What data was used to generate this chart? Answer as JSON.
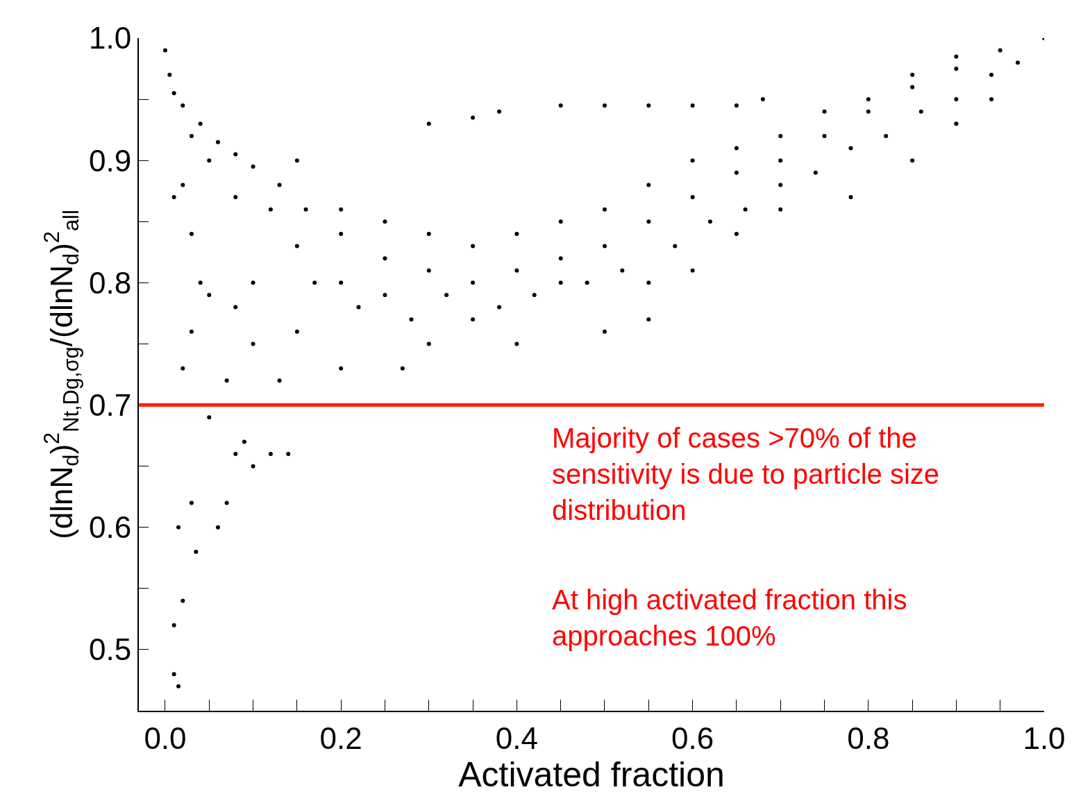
{
  "chart_data": {
    "type": "scatter",
    "xlabel": "Activated fraction",
    "ylabel": "(dlnN$_{d}$)$^{2}$$_{Nt,Dg,σg}$/(dlnN$_{d}$)$^{2}$$_{all}$",
    "xlim": [
      -0.03,
      1.0
    ],
    "ylim": [
      0.45,
      1.0
    ],
    "xticks": [
      {
        "value": 0.0,
        "label": "0.0"
      },
      {
        "value": 0.05,
        "label": null
      },
      {
        "value": 0.1,
        "label": null
      },
      {
        "value": 0.15,
        "label": null
      },
      {
        "value": 0.2,
        "label": "0.2"
      },
      {
        "value": 0.25,
        "label": null
      },
      {
        "value": 0.3,
        "label": null
      },
      {
        "value": 0.35,
        "label": null
      },
      {
        "value": 0.4,
        "label": "0.4"
      },
      {
        "value": 0.45,
        "label": null
      },
      {
        "value": 0.5,
        "label": null
      },
      {
        "value": 0.55,
        "label": null
      },
      {
        "value": 0.6,
        "label": "0.6"
      },
      {
        "value": 0.65,
        "label": null
      },
      {
        "value": 0.7,
        "label": null
      },
      {
        "value": 0.75,
        "label": null
      },
      {
        "value": 0.8,
        "label": "0.8"
      },
      {
        "value": 0.85,
        "label": null
      },
      {
        "value": 0.9,
        "label": null
      },
      {
        "value": 0.95,
        "label": null
      },
      {
        "value": 1.0,
        "label": "1.0"
      }
    ],
    "yticks": [
      {
        "value": 0.5,
        "label": "0.5"
      },
      {
        "value": 0.55,
        "label": null
      },
      {
        "value": 0.6,
        "label": "0.6"
      },
      {
        "value": 0.65,
        "label": null
      },
      {
        "value": 0.7,
        "label": "0.7"
      },
      {
        "value": 0.75,
        "label": null
      },
      {
        "value": 0.8,
        "label": "0.8"
      },
      {
        "value": 0.85,
        "label": null
      },
      {
        "value": 0.9,
        "label": "0.9"
      },
      {
        "value": 0.95,
        "label": null
      },
      {
        "value": 1.0,
        "label": "1.0"
      }
    ],
    "marker": "circle",
    "series": [
      {
        "color": "#000000",
        "x": [
          0.0,
          0.005,
          0.01,
          0.02,
          0.04,
          0.06,
          0.08,
          0.1,
          0.13,
          0.16,
          0.2,
          0.25,
          0.3,
          0.35,
          0.4,
          0.45,
          0.5,
          0.55,
          0.6,
          0.65,
          0.7,
          0.75,
          0.8,
          0.85,
          0.9,
          0.95,
          1.0,
          0.2,
          0.27,
          0.3,
          0.4,
          0.5,
          0.55,
          0.3,
          0.35,
          0.38,
          0.45,
          0.5,
          0.55,
          0.6,
          0.65,
          0.68,
          0.01,
          0.015,
          0.01,
          0.02,
          0.015,
          0.035,
          0.03,
          0.06,
          0.07,
          0.05,
          0.08,
          0.09,
          0.1,
          0.12,
          0.14,
          0.02,
          0.03,
          0.05,
          0.08,
          0.1,
          0.13,
          0.15,
          0.07,
          0.03,
          0.01,
          0.04,
          0.15,
          0.2,
          0.22,
          0.25,
          0.28,
          0.32,
          0.35,
          0.38,
          0.42,
          0.45,
          0.48,
          0.52,
          0.58,
          0.62,
          0.66,
          0.7,
          0.74,
          0.78,
          0.82,
          0.86,
          0.9,
          0.94,
          0.97,
          0.2,
          0.25,
          0.3,
          0.35,
          0.4,
          0.45,
          0.5,
          0.55,
          0.6,
          0.65,
          0.7,
          0.75,
          0.8,
          0.85,
          0.9,
          0.12,
          0.08,
          0.05,
          0.03,
          0.02,
          0.1,
          0.17,
          0.15,
          0.55,
          0.6,
          0.65,
          0.7,
          0.78,
          0.85,
          0.9,
          0.94
        ],
        "values": [
          0.99,
          0.97,
          0.955,
          0.945,
          0.93,
          0.915,
          0.905,
          0.895,
          0.88,
          0.86,
          0.84,
          0.82,
          0.81,
          0.8,
          0.81,
          0.82,
          0.83,
          0.85,
          0.87,
          0.89,
          0.9,
          0.92,
          0.94,
          0.96,
          0.975,
          0.99,
          1.0,
          0.73,
          0.73,
          0.75,
          0.75,
          0.76,
          0.77,
          0.93,
          0.935,
          0.94,
          0.945,
          0.945,
          0.945,
          0.945,
          0.945,
          0.95,
          0.48,
          0.47,
          0.52,
          0.54,
          0.6,
          0.58,
          0.62,
          0.6,
          0.62,
          0.69,
          0.66,
          0.67,
          0.65,
          0.66,
          0.66,
          0.73,
          0.76,
          0.79,
          0.78,
          0.75,
          0.72,
          0.76,
          0.72,
          0.84,
          0.87,
          0.8,
          0.83,
          0.8,
          0.78,
          0.79,
          0.77,
          0.79,
          0.77,
          0.78,
          0.79,
          0.8,
          0.8,
          0.81,
          0.83,
          0.85,
          0.86,
          0.88,
          0.89,
          0.91,
          0.92,
          0.94,
          0.95,
          0.97,
          0.98,
          0.86,
          0.85,
          0.84,
          0.83,
          0.84,
          0.85,
          0.86,
          0.88,
          0.9,
          0.91,
          0.92,
          0.94,
          0.95,
          0.97,
          0.985,
          0.86,
          0.87,
          0.9,
          0.92,
          0.88,
          0.8,
          0.8,
          0.9,
          0.8,
          0.81,
          0.84,
          0.86,
          0.87,
          0.9,
          0.93,
          0.95
        ]
      }
    ],
    "ref_lines": [
      {
        "axis": "y",
        "value": 0.7,
        "color": "#ff2200",
        "line_style": "solid"
      }
    ],
    "annotations": [
      "Majority of cases >70% of the sensitivity is due to particle size distribution",
      "At high activated fraction this approaches 100%"
    ]
  }
}
